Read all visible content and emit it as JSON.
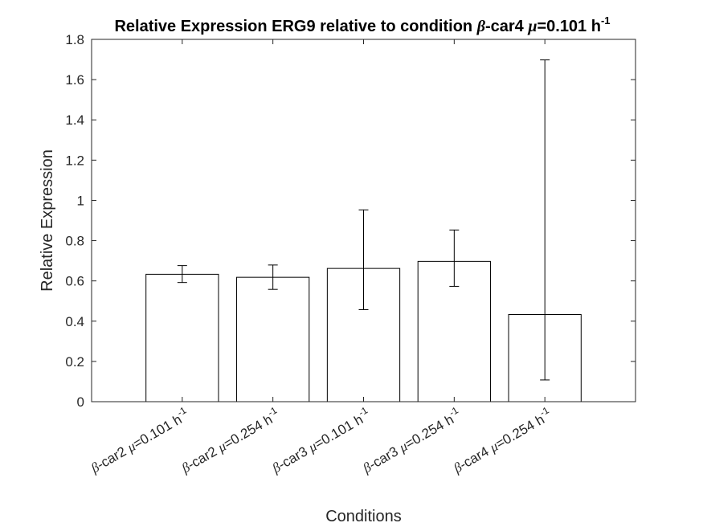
{
  "chart_data": {
    "type": "bar",
    "title": {
      "prefix": "Relative Expression ERG9 relative to condition ",
      "greek1": "β",
      "mid": "-car4 ",
      "greek2": "μ",
      "suffix": "=0.101 h",
      "sup": "-1"
    },
    "xlabel": "Conditions",
    "ylabel": "Relative Expression",
    "ylim": [
      0,
      1.8
    ],
    "yticks": [
      0,
      0.2,
      0.4,
      0.6,
      0.8,
      1,
      1.2,
      1.4,
      1.6,
      1.8
    ],
    "ytick_labels": [
      "0",
      "0.2",
      "0.4",
      "0.6",
      "0.8",
      "1",
      "1.2",
      "1.4",
      "1.6",
      "1.8"
    ],
    "grid": false,
    "categories": [
      {
        "greek1": "β",
        "name": "-car2 ",
        "greek2": "μ",
        "rate": "=0.101 h",
        "sup": "-1"
      },
      {
        "greek1": "β",
        "name": "-car2 ",
        "greek2": "μ",
        "rate": "=0.254 h",
        "sup": "-1"
      },
      {
        "greek1": "β",
        "name": "-car3 ",
        "greek2": "μ",
        "rate": "=0.101 h",
        "sup": "-1"
      },
      {
        "greek1": "β",
        "name": "-car3 ",
        "greek2": "μ",
        "rate": "=0.254 h",
        "sup": "-1"
      },
      {
        "greek1": "β",
        "name": "-car4 ",
        "greek2": "μ",
        "rate": "=0.254 h",
        "sup": "-1"
      }
    ],
    "values": [
      0.633,
      0.618,
      0.662,
      0.697,
      0.433
    ],
    "error_low": [
      0.592,
      0.558,
      0.457,
      0.573,
      0.108
    ],
    "error_high": [
      0.676,
      0.679,
      0.953,
      0.853,
      1.698
    ],
    "colors": {
      "bar_fill": "#ffffff",
      "bar_edge": "#000000",
      "axis": "#262626"
    }
  }
}
